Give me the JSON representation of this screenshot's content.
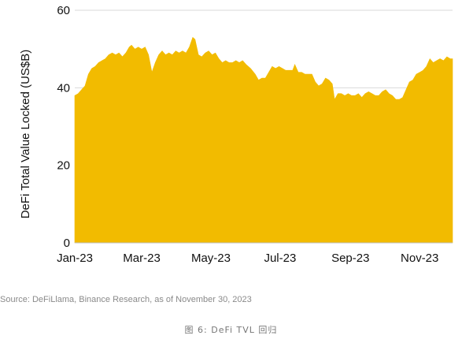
{
  "chart_data": {
    "type": "area",
    "ylabel": "DeFi Total Value Locked (US$B)",
    "ylim": [
      0,
      60
    ],
    "yticks": [
      0,
      20,
      40,
      60
    ],
    "xlim": [
      "2023-01-01",
      "2023-11-30"
    ],
    "xticks": [
      {
        "date": "2023-01-01",
        "label": "Jan-23"
      },
      {
        "date": "2023-03-01",
        "label": "Mar-23"
      },
      {
        "date": "2023-05-01",
        "label": "May-23"
      },
      {
        "date": "2023-07-01",
        "label": "Jul-23"
      },
      {
        "date": "2023-09-01",
        "label": "Sep-23"
      },
      {
        "date": "2023-11-01",
        "label": "Nov-23"
      }
    ],
    "grid": true,
    "color": "#F2BB00",
    "series": [
      {
        "points": [
          [
            "2023-01-01",
            38.0
          ],
          [
            "2023-01-04",
            38.5
          ],
          [
            "2023-01-07",
            39.5
          ],
          [
            "2023-01-10",
            40.5
          ],
          [
            "2023-01-13",
            43.5
          ],
          [
            "2023-01-16",
            45.0
          ],
          [
            "2023-01-19",
            45.5
          ],
          [
            "2023-01-22",
            46.5
          ],
          [
            "2023-01-25",
            47.0
          ],
          [
            "2023-01-28",
            47.5
          ],
          [
            "2023-01-31",
            48.5
          ],
          [
            "2023-02-03",
            49.0
          ],
          [
            "2023-02-06",
            48.5
          ],
          [
            "2023-02-09",
            49.0
          ],
          [
            "2023-02-12",
            48.0
          ],
          [
            "2023-02-15",
            49.0
          ],
          [
            "2023-02-18",
            50.5
          ],
          [
            "2023-02-20",
            51.0
          ],
          [
            "2023-02-23",
            50.0
          ],
          [
            "2023-02-26",
            50.5
          ],
          [
            "2023-03-01",
            50.0
          ],
          [
            "2023-03-04",
            50.5
          ],
          [
            "2023-03-07",
            48.5
          ],
          [
            "2023-03-10",
            44.0
          ],
          [
            "2023-03-13",
            46.5
          ],
          [
            "2023-03-16",
            48.5
          ],
          [
            "2023-03-19",
            49.5
          ],
          [
            "2023-03-22",
            48.5
          ],
          [
            "2023-03-25",
            49.0
          ],
          [
            "2023-03-28",
            48.5
          ],
          [
            "2023-03-31",
            49.5
          ],
          [
            "2023-04-03",
            49.0
          ],
          [
            "2023-04-06",
            49.5
          ],
          [
            "2023-04-09",
            49.0
          ],
          [
            "2023-04-12",
            50.5
          ],
          [
            "2023-04-15",
            53.0
          ],
          [
            "2023-04-17",
            52.5
          ],
          [
            "2023-04-20",
            48.5
          ],
          [
            "2023-04-23",
            48.0
          ],
          [
            "2023-04-26",
            49.0
          ],
          [
            "2023-04-29",
            49.5
          ],
          [
            "2023-05-02",
            48.5
          ],
          [
            "2023-05-05",
            49.0
          ],
          [
            "2023-05-08",
            47.5
          ],
          [
            "2023-05-11",
            46.5
          ],
          [
            "2023-05-14",
            47.0
          ],
          [
            "2023-05-17",
            46.5
          ],
          [
            "2023-05-20",
            46.5
          ],
          [
            "2023-05-23",
            47.0
          ],
          [
            "2023-05-26",
            46.5
          ],
          [
            "2023-05-29",
            47.0
          ],
          [
            "2023-06-01",
            46.0
          ],
          [
            "2023-06-05",
            45.0
          ],
          [
            "2023-06-09",
            43.5
          ],
          [
            "2023-06-12",
            42.0
          ],
          [
            "2023-06-15",
            42.5
          ],
          [
            "2023-06-18",
            42.5
          ],
          [
            "2023-06-21",
            44.0
          ],
          [
            "2023-06-24",
            45.5
          ],
          [
            "2023-06-27",
            45.0
          ],
          [
            "2023-06-30",
            45.5
          ],
          [
            "2023-07-03",
            45.0
          ],
          [
            "2023-07-06",
            44.5
          ],
          [
            "2023-07-09",
            44.5
          ],
          [
            "2023-07-12",
            44.5
          ],
          [
            "2023-07-14",
            46.0
          ],
          [
            "2023-07-17",
            44.0
          ],
          [
            "2023-07-20",
            44.0
          ],
          [
            "2023-07-23",
            43.5
          ],
          [
            "2023-07-26",
            43.5
          ],
          [
            "2023-07-29",
            43.5
          ],
          [
            "2023-08-01",
            41.5
          ],
          [
            "2023-08-04",
            40.5
          ],
          [
            "2023-08-07",
            41.0
          ],
          [
            "2023-08-10",
            42.5
          ],
          [
            "2023-08-13",
            42.0
          ],
          [
            "2023-08-16",
            41.0
          ],
          [
            "2023-08-18",
            37.0
          ],
          [
            "2023-08-21",
            38.5
          ],
          [
            "2023-08-24",
            38.5
          ],
          [
            "2023-08-27",
            38.0
          ],
          [
            "2023-08-30",
            38.5
          ],
          [
            "2023-09-02",
            38.0
          ],
          [
            "2023-09-05",
            38.0
          ],
          [
            "2023-09-08",
            38.5
          ],
          [
            "2023-09-11",
            37.5
          ],
          [
            "2023-09-14",
            38.5
          ],
          [
            "2023-09-17",
            39.0
          ],
          [
            "2023-09-20",
            38.5
          ],
          [
            "2023-09-23",
            38.0
          ],
          [
            "2023-09-26",
            38.0
          ],
          [
            "2023-09-29",
            39.0
          ],
          [
            "2023-10-02",
            39.5
          ],
          [
            "2023-10-05",
            38.5
          ],
          [
            "2023-10-08",
            38.0
          ],
          [
            "2023-10-11",
            37.0
          ],
          [
            "2023-10-14",
            37.0
          ],
          [
            "2023-10-17",
            37.5
          ],
          [
            "2023-10-20",
            39.5
          ],
          [
            "2023-10-23",
            41.5
          ],
          [
            "2023-10-26",
            42.0
          ],
          [
            "2023-10-29",
            43.5
          ],
          [
            "2023-11-01",
            44.0
          ],
          [
            "2023-11-04",
            44.5
          ],
          [
            "2023-11-07",
            45.5
          ],
          [
            "2023-11-10",
            47.5
          ],
          [
            "2023-11-13",
            46.5
          ],
          [
            "2023-11-16",
            47.0
          ],
          [
            "2023-11-19",
            47.5
          ],
          [
            "2023-11-22",
            47.0
          ],
          [
            "2023-11-25",
            48.0
          ],
          [
            "2023-11-28",
            47.5
          ],
          [
            "2023-11-30",
            47.5
          ]
        ]
      }
    ]
  },
  "source": "Source: DeFiLlama, Binance Research, as of November 30, 2023",
  "caption": "图 6: DeFi TVL 回归"
}
